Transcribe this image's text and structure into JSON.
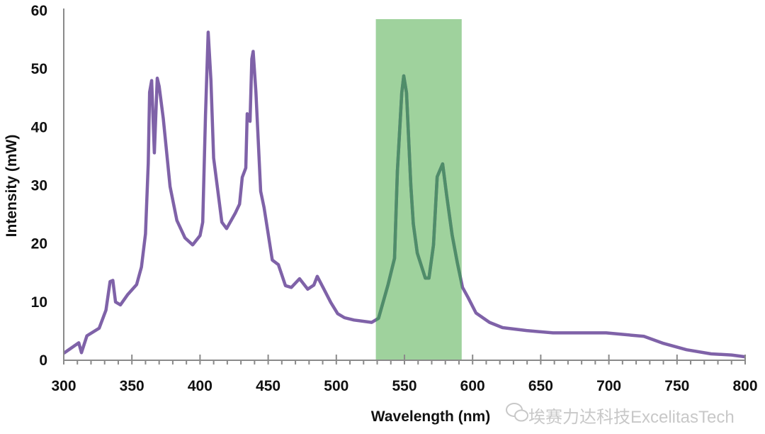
{
  "chart_data": {
    "type": "line",
    "title": "",
    "xlabel": "Wavelength (nm)",
    "ylabel": "Intensity (mW)",
    "xlim": [
      300,
      800
    ],
    "ylim": [
      0,
      60
    ],
    "xticks": [
      300,
      350,
      400,
      450,
      500,
      550,
      600,
      650,
      700,
      750,
      800
    ],
    "yticks": [
      0,
      10,
      20,
      30,
      40,
      50,
      60
    ],
    "grid": false,
    "highlight_band": {
      "from": 529,
      "to": 592,
      "color": "#9fd29d"
    },
    "series": [
      {
        "name": "Intensity",
        "color": "#7f62a8",
        "x": [
          300,
          311,
          313,
          317,
          326,
          331,
          334,
          336,
          338,
          341.6,
          347,
          353.5,
          357,
          360,
          362,
          363,
          364.5,
          366.5,
          368.6,
          370,
          373,
          378,
          383,
          389,
          394.6,
          400,
          402,
          404,
          406,
          408,
          410,
          416,
          419.5,
          426,
          429,
          431,
          433.6,
          434.6,
          436.7,
          438,
          439,
          441,
          444.5,
          447,
          453,
          457.5,
          462.7,
          467,
          473,
          479,
          483.5,
          486,
          490.7,
          496,
          501,
          506,
          513,
          526,
          531,
          538,
          542.7,
          544.8,
          548,
          549.5,
          551.5,
          554.7,
          556.5,
          559.4,
          565.3,
          568,
          571.3,
          574,
          578,
          581,
          585,
          588.8,
          592.6,
          596.6,
          602.5,
          612.4,
          622,
          639.6,
          659,
          698,
          725.7,
          740,
          757,
          775,
          790,
          800
        ],
        "y": [
          1.2,
          3,
          1.3,
          4.2,
          5.5,
          8.6,
          13.5,
          13.7,
          10,
          9.5,
          11.3,
          13,
          16,
          21.7,
          33.8,
          46,
          48,
          35.6,
          48.4,
          47,
          41.5,
          29.8,
          24,
          21,
          19.8,
          21.4,
          23.7,
          42,
          56.3,
          48,
          34.7,
          23.7,
          22.6,
          25.3,
          26.8,
          31.4,
          33,
          42.3,
          41,
          51.7,
          53,
          46,
          29,
          26.2,
          17.2,
          16.4,
          12.8,
          12.5,
          14,
          12.2,
          12.9,
          14.4,
          12.3,
          9.9,
          8,
          7.3,
          6.9,
          6.5,
          7.2,
          13,
          17.5,
          32.4,
          45.9,
          48.8,
          45.9,
          30,
          23.4,
          18.4,
          14.1,
          14.1,
          19.8,
          31.5,
          33.7,
          28.3,
          21.5,
          16.7,
          12.5,
          10.8,
          8.1,
          6.5,
          5.6,
          5.1,
          4.7,
          4.7,
          4.1,
          2.9,
          1.8,
          1.1,
          0.9,
          0.6
        ]
      }
    ]
  },
  "watermark": "埃赛力达科技ExcelitasTech"
}
